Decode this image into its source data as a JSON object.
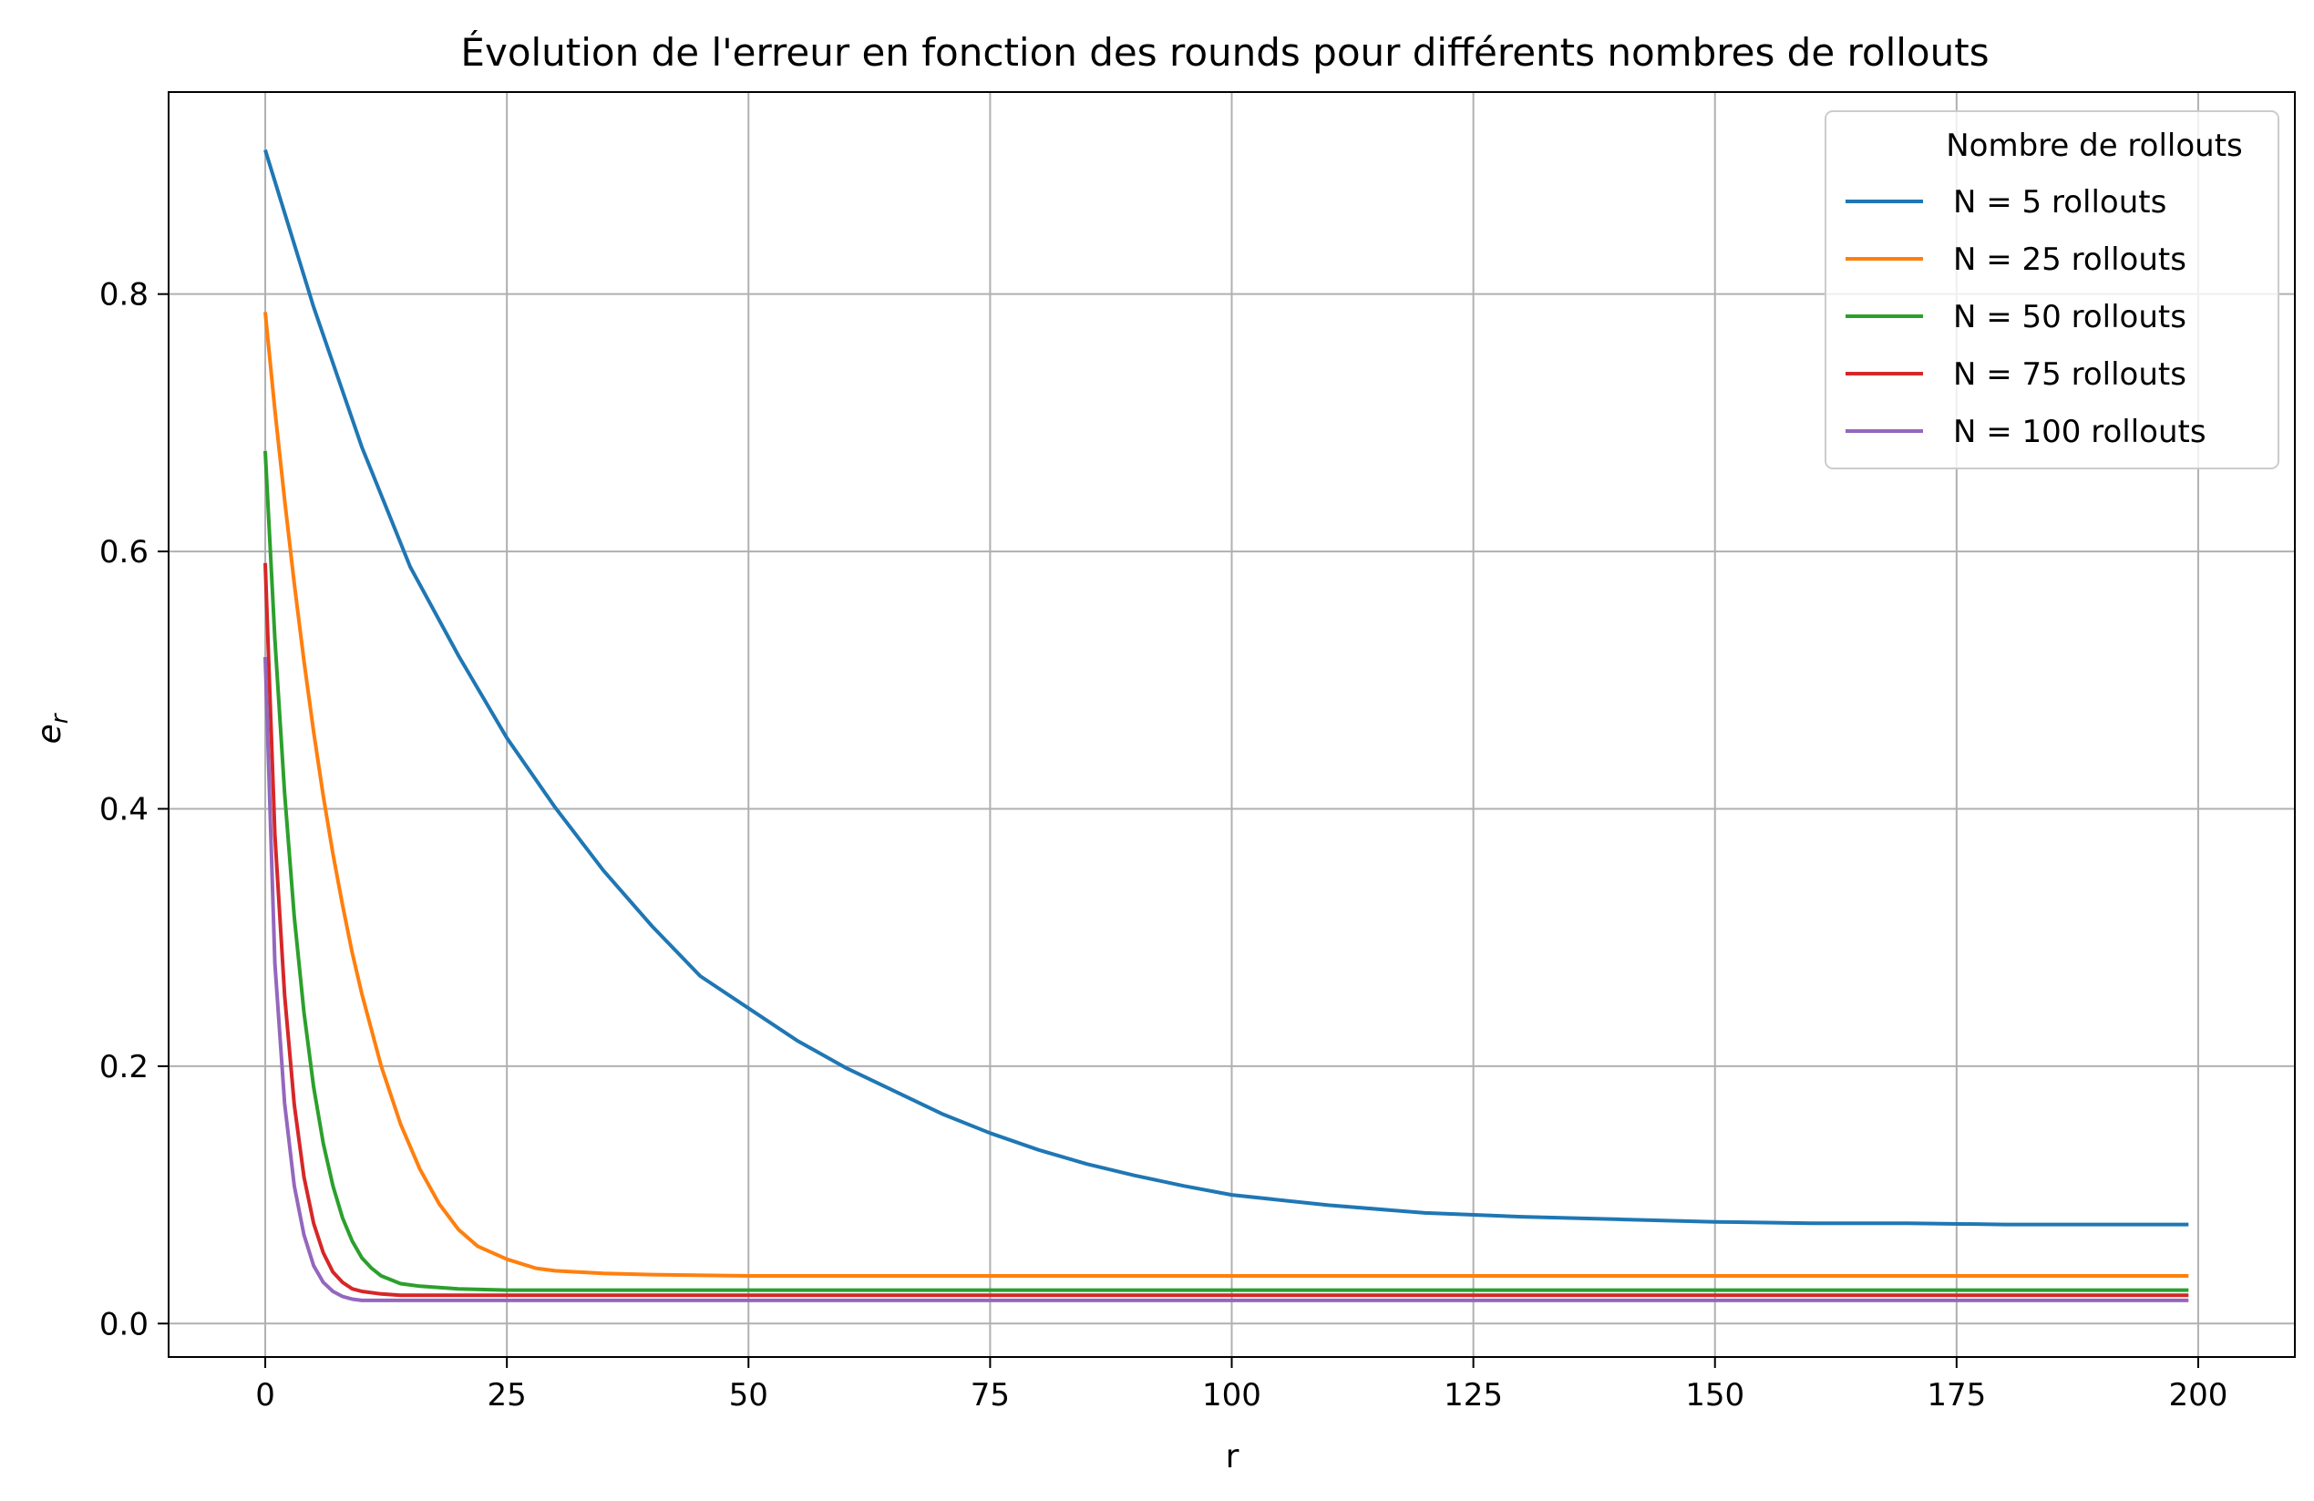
{
  "chart_data": {
    "type": "line",
    "title": "Évolution de l'erreur en fonction des rounds pour différents nombres de rollouts",
    "xlabel": "r",
    "ylabel_base": "e",
    "ylabel_sub": "r",
    "xlim": [
      -10,
      210
    ],
    "ylim": [
      -0.026,
      0.957
    ],
    "xticks": [
      0,
      25,
      50,
      75,
      100,
      125,
      150,
      175,
      200
    ],
    "yticks": [
      0.0,
      0.2,
      0.4,
      0.6,
      0.8
    ],
    "xtick_labels": [
      "0",
      "25",
      "50",
      "75",
      "100",
      "125",
      "150",
      "175",
      "200"
    ],
    "ytick_labels": [
      "0.0",
      "0.2",
      "0.4",
      "0.6",
      "0.8"
    ],
    "grid": true,
    "legend_title": "Nombre de rollouts",
    "legend_position": "top-right",
    "series": [
      {
        "name": "N = 5 rollouts",
        "color": "#1f77b4",
        "x": [
          0,
          5,
          10,
          15,
          20,
          25,
          30,
          35,
          40,
          45,
          50,
          55,
          60,
          65,
          70,
          75,
          80,
          85,
          90,
          95,
          100,
          110,
          120,
          130,
          140,
          150,
          160,
          170,
          180,
          190,
          199
        ],
        "y": [
          0.912,
          0.79,
          0.681,
          0.588,
          0.519,
          0.455,
          0.401,
          0.352,
          0.309,
          0.27,
          0.245,
          0.22,
          0.199,
          0.181,
          0.163,
          0.148,
          0.135,
          0.124,
          0.115,
          0.107,
          0.1,
          0.092,
          0.086,
          0.083,
          0.081,
          0.079,
          0.078,
          0.078,
          0.077,
          0.077,
          0.077
        ]
      },
      {
        "name": "N = 25 rollouts",
        "color": "#ff7f0e",
        "x": [
          0,
          1,
          2,
          3,
          4,
          5,
          6,
          7,
          8,
          9,
          10,
          12,
          14,
          16,
          18,
          20,
          22,
          25,
          28,
          30,
          35,
          40,
          50,
          60,
          80,
          100,
          150,
          199
        ],
        "y": [
          0.786,
          0.71,
          0.64,
          0.575,
          0.515,
          0.46,
          0.41,
          0.365,
          0.325,
          0.288,
          0.256,
          0.2,
          0.155,
          0.12,
          0.093,
          0.073,
          0.06,
          0.05,
          0.043,
          0.041,
          0.039,
          0.038,
          0.037,
          0.037,
          0.037,
          0.037,
          0.037,
          0.037
        ]
      },
      {
        "name": "N = 50 rollouts",
        "color": "#2ca02c",
        "x": [
          0,
          1,
          2,
          3,
          4,
          5,
          6,
          7,
          8,
          9,
          10,
          11,
          12,
          14,
          16,
          20,
          25,
          30,
          50,
          100,
          150,
          199
        ],
        "y": [
          0.678,
          0.532,
          0.412,
          0.316,
          0.242,
          0.184,
          0.14,
          0.107,
          0.082,
          0.064,
          0.051,
          0.043,
          0.037,
          0.031,
          0.029,
          0.027,
          0.026,
          0.026,
          0.026,
          0.026,
          0.026,
          0.026
        ]
      },
      {
        "name": "N = 75 rollouts",
        "color": "#d62728",
        "x": [
          0,
          1,
          2,
          3,
          4,
          5,
          6,
          7,
          8,
          9,
          10,
          12,
          14,
          20,
          30,
          50,
          100,
          150,
          199
        ],
        "y": [
          0.591,
          0.38,
          0.255,
          0.17,
          0.114,
          0.078,
          0.055,
          0.04,
          0.032,
          0.027,
          0.025,
          0.023,
          0.022,
          0.022,
          0.022,
          0.022,
          0.022,
          0.022,
          0.022
        ]
      },
      {
        "name": "N = 100 rollouts",
        "color": "#9467bd",
        "x": [
          0,
          1,
          2,
          3,
          4,
          5,
          6,
          7,
          8,
          9,
          10,
          12,
          14,
          20,
          30,
          50,
          100,
          150,
          199
        ],
        "y": [
          0.518,
          0.28,
          0.171,
          0.107,
          0.069,
          0.045,
          0.032,
          0.025,
          0.021,
          0.019,
          0.018,
          0.018,
          0.018,
          0.018,
          0.018,
          0.018,
          0.018,
          0.018,
          0.018
        ]
      }
    ]
  }
}
